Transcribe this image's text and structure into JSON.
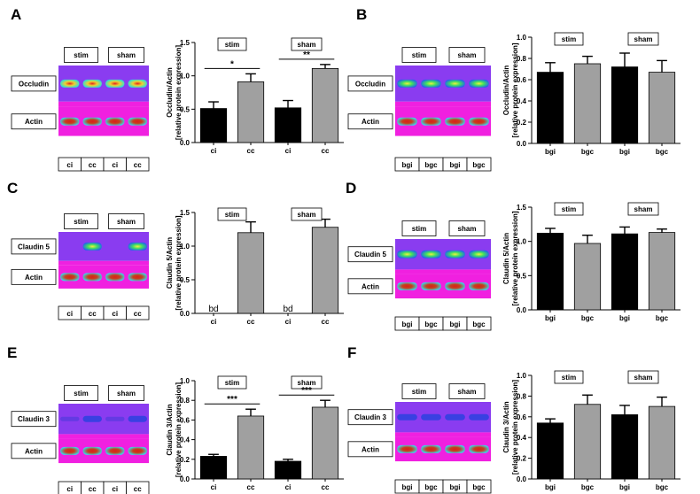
{
  "blot_colors": {
    "background": "#8a3cf0",
    "stripe": "#f020e0",
    "occludin_band": "#40e060",
    "actin_band": "#c0201a"
  },
  "chart_data": [
    {
      "panel": "A",
      "type": "bar",
      "protein": "Occludin",
      "series": "stim,sham",
      "ylabel": [
        "Occludin/Actin",
        "[relative protein expression]"
      ],
      "ylim": [
        0,
        1.5
      ],
      "yticks": [
        "0.0",
        "0.5",
        "1.0",
        "1.5"
      ],
      "groups": [
        "stim",
        "sham"
      ],
      "categories": [
        "ci",
        "cc",
        "ci",
        "cc"
      ],
      "values": [
        0.51,
        0.91,
        0.52,
        1.11
      ],
      "errors": [
        0.1,
        0.12,
        0.11,
        0.06
      ],
      "colors": [
        "#000000",
        "#a0a0a0",
        "#000000",
        "#a0a0a0"
      ],
      "significance": [
        {
          "from": 0,
          "to": 1,
          "label": "*"
        },
        {
          "from": 2,
          "to": 3,
          "label": "**"
        }
      ],
      "blot": {
        "lanes": [
          "ci",
          "cc",
          "ci",
          "cc"
        ],
        "row_labels": [
          "Occludin",
          "Actin"
        ],
        "group_labels": [
          "stim",
          "sham"
        ]
      }
    },
    {
      "panel": "B",
      "type": "bar",
      "protein": "Occludin",
      "ylabel": [
        "Occludin/Actin",
        "[relative protein expression]"
      ],
      "ylim": [
        0,
        1.0
      ],
      "yticks": [
        "0.0",
        "0.2",
        "0.4",
        "0.6",
        "0.8",
        "1.0"
      ],
      "groups": [
        "stim",
        "sham"
      ],
      "categories": [
        "bgi",
        "bgc",
        "bgi",
        "bgc"
      ],
      "values": [
        0.67,
        0.75,
        0.72,
        0.67
      ],
      "errors": [
        0.09,
        0.07,
        0.13,
        0.11
      ],
      "colors": [
        "#000000",
        "#a0a0a0",
        "#000000",
        "#a0a0a0"
      ],
      "significance": [],
      "blot": {
        "lanes": [
          "bgi",
          "bgc",
          "bgi",
          "bgc"
        ],
        "row_labels": [
          "Occludin",
          "Actin"
        ],
        "group_labels": [
          "stim",
          "sham"
        ]
      }
    },
    {
      "panel": "C",
      "type": "bar",
      "protein": "Claudin 5",
      "ylabel": [
        "Claudin 5/Actin",
        "[relative protein expression]"
      ],
      "ylim": [
        0,
        1.5
      ],
      "yticks": [
        "0.0",
        "0.5",
        "1.0",
        "1.5"
      ],
      "groups": [
        "stim",
        "sham"
      ],
      "categories": [
        "ci",
        "cc",
        "ci",
        "cc"
      ],
      "values": [
        0,
        1.2,
        0,
        1.28
      ],
      "errors": [
        0,
        0.16,
        0,
        0.12
      ],
      "colors": [
        "#000000",
        "#a0a0a0",
        "#000000",
        "#a0a0a0"
      ],
      "bar_annotations": [
        "bd",
        "",
        "bd",
        ""
      ],
      "significance": [],
      "blot": {
        "lanes": [
          "ci",
          "cc",
          "ci",
          "cc"
        ],
        "row_labels": [
          "Claudin 5",
          "Actin"
        ],
        "group_labels": [
          "stim",
          "sham"
        ]
      }
    },
    {
      "panel": "D",
      "type": "bar",
      "protein": "Claudin 5",
      "ylabel": [
        "Claudin 5/Actin",
        "[relative protein expression]"
      ],
      "ylim": [
        0,
        1.5
      ],
      "yticks": [
        "0.0",
        "0.5",
        "1.0",
        "1.5"
      ],
      "groups": [
        "stim",
        "sham"
      ],
      "categories": [
        "bgi",
        "bgc",
        "bgi",
        "bgc"
      ],
      "values": [
        1.12,
        0.97,
        1.11,
        1.13
      ],
      "errors": [
        0.07,
        0.12,
        0.1,
        0.05
      ],
      "colors": [
        "#000000",
        "#a0a0a0",
        "#000000",
        "#a0a0a0"
      ],
      "significance": [],
      "blot": {
        "lanes": [
          "bgi",
          "bgc",
          "bgi",
          "bgc"
        ],
        "row_labels": [
          "Claudin 5",
          "Actin"
        ],
        "group_labels": [
          "stim",
          "sham"
        ]
      }
    },
    {
      "panel": "E",
      "type": "bar",
      "protein": "Claudin 3",
      "ylabel": [
        "Claudin 3/Actin",
        "[relative protein expression]"
      ],
      "ylim": [
        0,
        1.0
      ],
      "yticks": [
        "0.0",
        "0.2",
        "0.4",
        "0.6",
        "0.8",
        "1.0"
      ],
      "groups": [
        "stim",
        "sham"
      ],
      "categories": [
        "ci",
        "cc",
        "ci",
        "cc"
      ],
      "values": [
        0.23,
        0.64,
        0.18,
        0.73
      ],
      "errors": [
        0.02,
        0.07,
        0.02,
        0.07
      ],
      "colors": [
        "#000000",
        "#a0a0a0",
        "#000000",
        "#a0a0a0"
      ],
      "significance": [
        {
          "from": 0,
          "to": 1,
          "label": "***"
        },
        {
          "from": 2,
          "to": 3,
          "label": "***"
        }
      ],
      "blot": {
        "lanes": [
          "ci",
          "cc",
          "ci",
          "cc"
        ],
        "row_labels": [
          "Claudin 3",
          "Actin"
        ],
        "group_labels": [
          "stim",
          "sham"
        ]
      }
    },
    {
      "panel": "F",
      "type": "bar",
      "protein": "Claudin 3",
      "ylabel": [
        "Claudin 3/Actin",
        "[relative protein expression]"
      ],
      "ylim": [
        0,
        1.0
      ],
      "yticks": [
        "0.0",
        "0.2",
        "0.4",
        "0.6",
        "0.8",
        "1.0"
      ],
      "groups": [
        "stim",
        "sham"
      ],
      "categories": [
        "bgi",
        "bgc",
        "bgi",
        "bgc"
      ],
      "values": [
        0.54,
        0.72,
        0.62,
        0.7
      ],
      "errors": [
        0.04,
        0.09,
        0.09,
        0.09
      ],
      "colors": [
        "#000000",
        "#a0a0a0",
        "#000000",
        "#a0a0a0"
      ],
      "significance": [],
      "blot": {
        "lanes": [
          "bgi",
          "bgc",
          "bgi",
          "bgc"
        ],
        "row_labels": [
          "Claudin 3",
          "Actin"
        ],
        "group_labels": [
          "stim",
          "sham"
        ]
      }
    }
  ]
}
